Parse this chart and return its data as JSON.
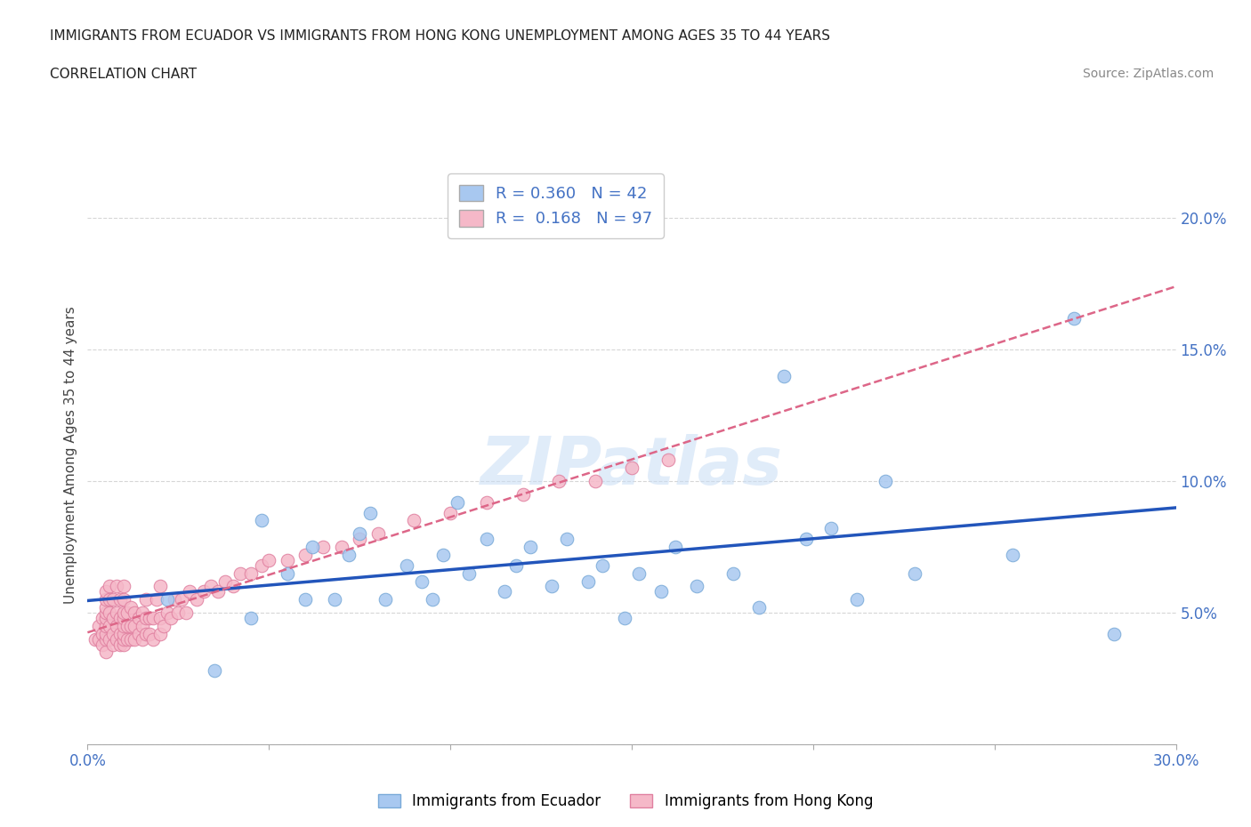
{
  "title_line1": "IMMIGRANTS FROM ECUADOR VS IMMIGRANTS FROM HONG KONG UNEMPLOYMENT AMONG AGES 35 TO 44 YEARS",
  "title_line2": "CORRELATION CHART",
  "source_text": "Source: ZipAtlas.com",
  "ylabel": "Unemployment Among Ages 35 to 44 years",
  "watermark": "ZIPatlas",
  "xlim": [
    0.0,
    0.3
  ],
  "ylim": [
    0.0,
    0.22
  ],
  "yticks": [
    0.0,
    0.05,
    0.1,
    0.15,
    0.2
  ],
  "ytick_labels": [
    "",
    "5.0%",
    "10.0%",
    "15.0%",
    "20.0%"
  ],
  "xticks": [
    0.0,
    0.05,
    0.1,
    0.15,
    0.2,
    0.25,
    0.3
  ],
  "xtick_labels": [
    "0.0%",
    "",
    "",
    "",
    "",
    "",
    "30.0%"
  ],
  "ecuador_color": "#a8c8f0",
  "ecuador_edge": "#7aaad8",
  "hk_color": "#f5b8c8",
  "hk_edge": "#e080a0",
  "R_ecuador": 0.36,
  "N_ecuador": 42,
  "R_hk": 0.168,
  "N_hk": 97,
  "trend_ecuador_color": "#2255bb",
  "trend_hk_color": "#dd6688",
  "legend_label_ecuador": "Immigrants from Ecuador",
  "legend_label_hk": "Immigrants from Hong Kong",
  "ecuador_x": [
    0.022,
    0.035,
    0.045,
    0.048,
    0.055,
    0.06,
    0.062,
    0.068,
    0.072,
    0.075,
    0.078,
    0.082,
    0.088,
    0.092,
    0.095,
    0.098,
    0.102,
    0.105,
    0.11,
    0.115,
    0.118,
    0.122,
    0.128,
    0.132,
    0.138,
    0.142,
    0.148,
    0.152,
    0.158,
    0.162,
    0.168,
    0.178,
    0.185,
    0.192,
    0.198,
    0.205,
    0.212,
    0.22,
    0.228,
    0.255,
    0.272,
    0.283
  ],
  "ecuador_y": [
    0.055,
    0.028,
    0.048,
    0.085,
    0.065,
    0.055,
    0.075,
    0.055,
    0.072,
    0.08,
    0.088,
    0.055,
    0.068,
    0.062,
    0.055,
    0.072,
    0.092,
    0.065,
    0.078,
    0.058,
    0.068,
    0.075,
    0.06,
    0.078,
    0.062,
    0.068,
    0.048,
    0.065,
    0.058,
    0.075,
    0.06,
    0.065,
    0.052,
    0.14,
    0.078,
    0.082,
    0.055,
    0.1,
    0.065,
    0.072,
    0.162,
    0.042
  ],
  "hk_x": [
    0.002,
    0.003,
    0.003,
    0.004,
    0.004,
    0.004,
    0.005,
    0.005,
    0.005,
    0.005,
    0.005,
    0.005,
    0.005,
    0.005,
    0.005,
    0.006,
    0.006,
    0.006,
    0.006,
    0.006,
    0.007,
    0.007,
    0.007,
    0.007,
    0.008,
    0.008,
    0.008,
    0.008,
    0.009,
    0.009,
    0.009,
    0.009,
    0.01,
    0.01,
    0.01,
    0.01,
    0.01,
    0.01,
    0.01,
    0.01,
    0.011,
    0.011,
    0.011,
    0.012,
    0.012,
    0.012,
    0.013,
    0.013,
    0.013,
    0.014,
    0.014,
    0.015,
    0.015,
    0.015,
    0.016,
    0.016,
    0.016,
    0.017,
    0.017,
    0.018,
    0.018,
    0.019,
    0.02,
    0.02,
    0.02,
    0.021,
    0.022,
    0.023,
    0.024,
    0.025,
    0.026,
    0.027,
    0.028,
    0.03,
    0.032,
    0.034,
    0.036,
    0.038,
    0.04,
    0.042,
    0.045,
    0.048,
    0.05,
    0.055,
    0.06,
    0.065,
    0.07,
    0.075,
    0.08,
    0.09,
    0.1,
    0.11,
    0.12,
    0.13,
    0.14,
    0.15,
    0.16
  ],
  "hk_y": [
    0.04,
    0.04,
    0.045,
    0.038,
    0.042,
    0.048,
    0.035,
    0.04,
    0.042,
    0.045,
    0.048,
    0.05,
    0.052,
    0.055,
    0.058,
    0.04,
    0.045,
    0.05,
    0.055,
    0.06,
    0.038,
    0.042,
    0.048,
    0.055,
    0.04,
    0.045,
    0.05,
    0.06,
    0.038,
    0.042,
    0.048,
    0.055,
    0.038,
    0.04,
    0.042,
    0.045,
    0.048,
    0.05,
    0.055,
    0.06,
    0.04,
    0.045,
    0.05,
    0.04,
    0.045,
    0.052,
    0.04,
    0.045,
    0.05,
    0.042,
    0.048,
    0.04,
    0.045,
    0.05,
    0.042,
    0.048,
    0.055,
    0.042,
    0.048,
    0.04,
    0.048,
    0.055,
    0.042,
    0.048,
    0.06,
    0.045,
    0.05,
    0.048,
    0.055,
    0.05,
    0.055,
    0.05,
    0.058,
    0.055,
    0.058,
    0.06,
    0.058,
    0.062,
    0.06,
    0.065,
    0.065,
    0.068,
    0.07,
    0.07,
    0.072,
    0.075,
    0.075,
    0.078,
    0.08,
    0.085,
    0.088,
    0.092,
    0.095,
    0.1,
    0.1,
    0.105,
    0.108
  ]
}
